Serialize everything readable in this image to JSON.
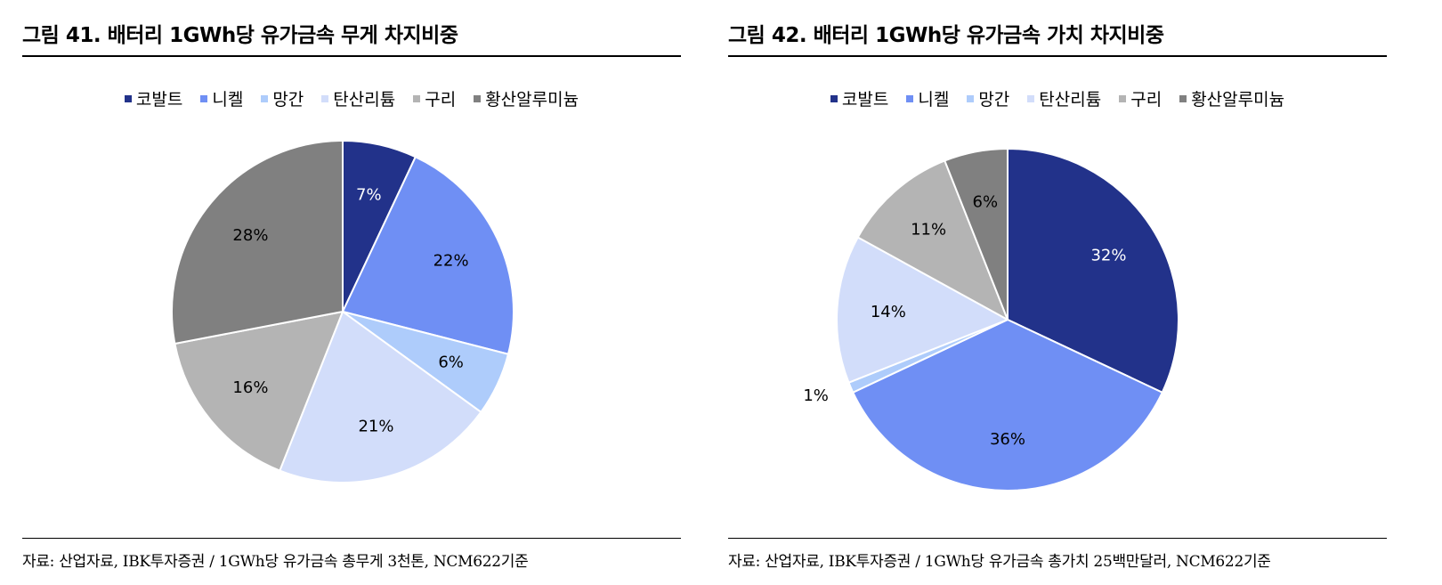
{
  "colors": {
    "cobalt": "#22328a",
    "nickel": "#6f8ff4",
    "manganese": "#aeccfb",
    "lithium_carbonate": "#d2ddfa",
    "copper": "#b4b4b4",
    "aluminum_sulfate": "#808080"
  },
  "chart_data": [
    {
      "type": "pie",
      "title": "그림 41. 배터리 1GWh당 유가금속 무게 차지비중",
      "source": "자료: 산업자료, IBK투자증권 / 1GWh당 유가금속 총무게 3천톤, NCM622기준",
      "legend": {
        "placement": "top-center"
      },
      "start_angle_deg": 0,
      "direction": "clockwise",
      "slices": [
        {
          "name": "코발트",
          "value": 7,
          "label": "7%",
          "color_key": "cobalt",
          "label_color": "#ffffff"
        },
        {
          "name": "니켈",
          "value": 22,
          "label": "22%",
          "color_key": "nickel",
          "label_color": "#000000"
        },
        {
          "name": "망간",
          "value": 6,
          "label": "6%",
          "color_key": "manganese",
          "label_color": "#000000"
        },
        {
          "name": "탄산리튬",
          "value": 21,
          "label": "21%",
          "color_key": "lithium_carbonate",
          "label_color": "#000000"
        },
        {
          "name": "구리",
          "value": 16,
          "label": "16%",
          "color_key": "copper",
          "label_color": "#000000"
        },
        {
          "name": "황산알루미늄",
          "value": 28,
          "label": "28%",
          "color_key": "aluminum_sulfate",
          "label_color": "#000000"
        }
      ]
    },
    {
      "type": "pie",
      "title": "그림 42. 배터리 1GWh당 유가금속 가치 차지비중",
      "source": "자료: 산업자료, IBK투자증권 / 1GWh당 유가금속 총가치 25백만달러, NCM622기준",
      "legend": {
        "placement": "top-center"
      },
      "start_angle_deg": 0,
      "direction": "clockwise",
      "slices": [
        {
          "name": "코발트",
          "value": 32,
          "label": "32%",
          "color_key": "cobalt",
          "label_color": "#ffffff"
        },
        {
          "name": "니켈",
          "value": 36,
          "label": "36%",
          "color_key": "nickel",
          "label_color": "#000000"
        },
        {
          "name": "망간",
          "value": 1,
          "label": "1%",
          "color_key": "manganese",
          "label_color": "#000000",
          "label_outside": true
        },
        {
          "name": "탄산리튬",
          "value": 14,
          "label": "14%",
          "color_key": "lithium_carbonate",
          "label_color": "#000000"
        },
        {
          "name": "구리",
          "value": 11,
          "label": "11%",
          "color_key": "copper",
          "label_color": "#000000"
        },
        {
          "name": "황산알루미늄",
          "value": 6,
          "label": "6%",
          "color_key": "aluminum_sulfate",
          "label_color": "#000000"
        }
      ]
    }
  ]
}
